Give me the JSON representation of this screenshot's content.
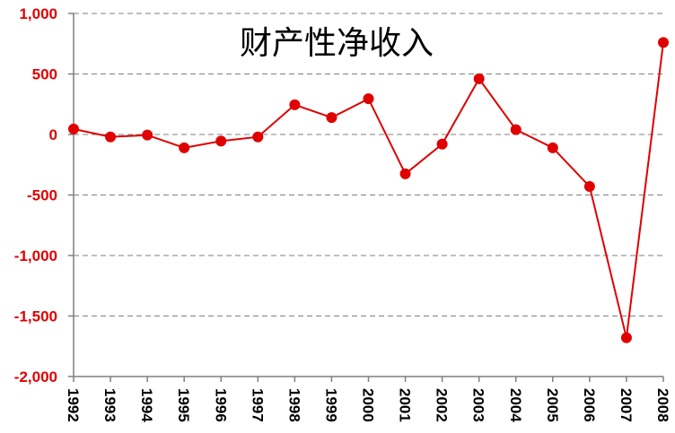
{
  "chart_data": {
    "type": "line",
    "title": "财产性净收入",
    "x": [
      "1992",
      "1993",
      "1994",
      "1995",
      "1996",
      "1997",
      "1998",
      "1999",
      "2000",
      "2001",
      "2002",
      "2003",
      "2004",
      "2005",
      "2006",
      "2007",
      "2008"
    ],
    "series": [
      {
        "values": [
          45,
          -20,
          -5,
          -110,
          -55,
          -20,
          245,
          140,
          295,
          -325,
          -80,
          460,
          40,
          -110,
          -430,
          -1680,
          760
        ]
      }
    ],
    "ylim": [
      -2000,
      1000
    ],
    "yticks": [
      1000,
      500,
      0,
      -500,
      -1000,
      -1500,
      -2000
    ],
    "ytick_labels": [
      "1,000",
      "500",
      "0",
      "-500",
      "-1,000",
      "-1,500",
      "-2,000"
    ],
    "grid": true,
    "legend": "none",
    "colors": {
      "line": "#e00000",
      "marker": "#e00000",
      "ytick": "#e00000",
      "xtick": "#000000"
    }
  }
}
